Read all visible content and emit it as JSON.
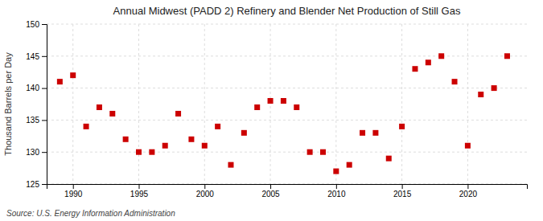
{
  "chart_data": {
    "type": "scatter",
    "title": "Annual Midwest (PADD 2) Refinery and Blender Net Production of Still Gas",
    "ylabel": "Thousand Barrels per Day",
    "annotation": "Source: U.S. Energy Information Administration",
    "x": [
      1989,
      1990,
      1991,
      1992,
      1993,
      1994,
      1995,
      1996,
      1997,
      1998,
      1999,
      2000,
      2001,
      2002,
      2003,
      2004,
      2005,
      2006,
      2007,
      2008,
      2009,
      2010,
      2011,
      2012,
      2013,
      2014,
      2015,
      2016,
      2017,
      2018,
      2019,
      2020,
      2021,
      2022,
      2023
    ],
    "values": [
      141,
      142,
      134,
      137,
      136,
      132,
      130,
      130,
      131,
      136,
      132,
      131,
      134,
      128,
      133,
      137,
      138,
      138,
      137,
      130,
      130,
      127,
      128,
      133,
      133,
      129,
      134,
      143,
      144,
      145,
      141,
      131,
      139,
      140,
      145
    ],
    "color": "#cc0000",
    "marker": "square",
    "xlim": [
      1988,
      2024.5
    ],
    "xticks": [
      1990,
      1995,
      2000,
      2005,
      2010,
      2015,
      2020
    ],
    "ylim": [
      125,
      150
    ],
    "yticks": [
      125,
      130,
      135,
      140,
      145,
      150
    ],
    "grid": true
  }
}
